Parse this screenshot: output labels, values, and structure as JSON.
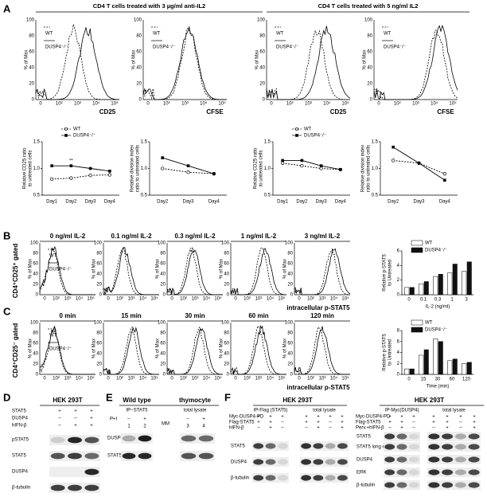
{
  "panel_labels": [
    "A",
    "B",
    "C",
    "D",
    "E",
    "F"
  ],
  "flow_axes": {
    "ylabel": "% of Max",
    "yticks": [
      0,
      20,
      40,
      60,
      80,
      100
    ],
    "xticks": [
      "0",
      "10²",
      "10³",
      "10⁴",
      "10⁵"
    ]
  },
  "panel_a": {
    "headers": [
      "CD4 T cells treated with 3 µg/ml anti-IL2",
      "CD4 T cells treated with 5 ng/ml IL2"
    ],
    "histogram_xlabels": [
      "CD25",
      "CFSE",
      "CD25",
      "CFSE"
    ],
    "legend": [
      "WT",
      "DUSP4⁻/⁻"
    ]
  },
  "panel_b": {
    "titles": [
      "0 ng/ml IL-2",
      "0.1 ng/ml IL-2",
      "0.3 ng/ml IL-2",
      "1 ng/ml IL-2",
      "3 ng/ml IL-2"
    ],
    "row_label": "CD4⁺CD25⁺ gated",
    "xlabel": "intracellular p-STAT5",
    "legend": [
      "WT",
      "DUSP4⁻/⁻"
    ]
  },
  "panel_c": {
    "titles": [
      "0 min",
      "15 min",
      "30 min",
      "60 min",
      "120 min"
    ],
    "row_label": "CD4⁺CD25⁻ gated",
    "xlabel": "intracellular p-STAT5",
    "legend": [
      "WT",
      "DUSP4⁻/⁻"
    ]
  },
  "panel_d": {
    "title": "HEK 293T",
    "conditions": [
      {
        "label": "STAT5",
        "signs": [
          "+",
          "+",
          "+"
        ]
      },
      {
        "label": "DUSP4",
        "signs": [
          "--",
          "--",
          "+"
        ]
      },
      {
        "label": "hIFN-β",
        "signs": [
          "--",
          "+",
          "+"
        ]
      }
    ],
    "blots": [
      "pSTAT5",
      "STAT5",
      "DUSP4",
      "β-tubulin"
    ]
  },
  "panel_e": {
    "headers": [
      "Wild type",
      "thymocyte"
    ],
    "groups": [
      "IP−STAT5",
      "total lysate"
    ],
    "marker": "MM",
    "condition": "P+I",
    "signs": [
      "--",
      "+",
      "--",
      "+"
    ],
    "lanes": [
      "1",
      "2",
      "3",
      "4"
    ],
    "blots": [
      "DUSP4",
      "STAT5"
    ]
  },
  "panel_f": [
    {
      "title": "HEK 293T",
      "groups": [
        "IP-Flag (STAT5)",
        "total lysate"
      ],
      "conditions": [
        {
          "label": "Myc-DUSP4-PD",
          "signs": [
            "+",
            "+",
            "+",
            "+",
            "+",
            "+",
            "+"
          ]
        },
        {
          "label": "Flag-STAT5",
          "signs": [
            "+",
            "+",
            "--",
            "+",
            "+",
            "--",
            "+"
          ]
        },
        {
          "label": "hIFN-β",
          "signs": [
            "--",
            "+",
            "--",
            "--",
            "+",
            "--",
            "+"
          ]
        }
      ],
      "blots": [
        "STAT5",
        "DUSP4",
        "β-tubulin"
      ]
    },
    {
      "title": "HEK 293T",
      "groups": [
        "IP-Myc(DUSP4)",
        "total lysate"
      ],
      "conditions": [
        {
          "label": "Myc-DUSP4-PD",
          "signs": [
            "+",
            "+",
            "+",
            "+",
            "+",
            "+",
            "+"
          ]
        },
        {
          "label": "Flag-STAT5",
          "signs": [
            "+",
            "+",
            "--",
            "+",
            "+",
            "--",
            "+"
          ]
        },
        {
          "label": "Perv.+hIFN-β",
          "signs": [
            "--",
            "+",
            "--",
            "--",
            "+",
            "--",
            "+"
          ]
        }
      ],
      "blots": [
        "STAT5",
        "STAT5 long expo.",
        "DUSP4",
        "ERK",
        "β-tubulin"
      ]
    }
  ],
  "chart_data": [
    {
      "type": "line",
      "ylabel": [
        "Relative CD25 ratio",
        "to untreated cells"
      ],
      "categories": [
        "Day1",
        "Day2",
        "Day3",
        "Day4"
      ],
      "ylim": [
        0.5,
        1.5
      ],
      "yticks": [
        0.5,
        {
          "value": 1,
          "label": "1.0"
        },
        1.5
      ],
      "legend": true,
      "annotation": "**",
      "series": [
        {
          "name": "WT",
          "color": "#000",
          "marker": "open",
          "dashed": true,
          "values": [
            0.8,
            0.82,
            0.87,
            0.88
          ]
        },
        {
          "name": "DUSP4⁻/⁻",
          "color": "#000",
          "marker": "filled",
          "dashed": false,
          "values": [
            1.05,
            1.05,
            1.0,
            0.95
          ]
        }
      ]
    },
    {
      "type": "line",
      "ylabel": [
        "Relative division index",
        "ratio to untreated cells"
      ],
      "categories": [
        "Day2",
        "Day3",
        "Day4"
      ],
      "ylim": [
        0.5,
        1.5
      ],
      "yticks": [
        0.5,
        {
          "value": 1,
          "label": "1.0"
        },
        1.5
      ],
      "legend": false,
      "series": [
        {
          "name": "WT",
          "color": "#000",
          "marker": "open",
          "dashed": true,
          "values": [
            1.0,
            0.93,
            0.9
          ]
        },
        {
          "name": "DUSP4⁻/⁻",
          "color": "#000",
          "marker": "filled",
          "dashed": false,
          "values": [
            1.2,
            1.05,
            0.9
          ]
        }
      ]
    },
    {
      "type": "line",
      "ylabel": [
        "Relative CD25 ratio",
        "to untreated cells"
      ],
      "categories": [
        "Day1",
        "Day2",
        "Day3",
        "Day4"
      ],
      "ylim": [
        0.5,
        1.5
      ],
      "yticks": [
        0.5,
        {
          "value": 1,
          "label": "1.0"
        },
        1.5
      ],
      "legend": true,
      "series": [
        {
          "name": "WT",
          "color": "#000",
          "marker": "open",
          "dashed": true,
          "values": [
            1.1,
            1.05,
            1.0,
            0.98
          ]
        },
        {
          "name": "DUSP4⁻/⁻",
          "color": "#000",
          "marker": "filled",
          "dashed": false,
          "values": [
            1.15,
            1.15,
            1.05,
            0.98
          ]
        }
      ]
    },
    {
      "type": "line",
      "ylabel": [
        "Relative division index",
        "ratio to untreated cells"
      ],
      "categories": [
        "Day2",
        "Day3",
        "Day4"
      ],
      "ylim": [
        0.5,
        1.5
      ],
      "yticks": [
        0.5,
        {
          "value": 1,
          "label": "1.0"
        },
        1.5
      ],
      "legend": false,
      "series": [
        {
          "name": "WT",
          "color": "#000",
          "marker": "open",
          "dashed": true,
          "values": [
            1.15,
            1.1,
            0.9
          ]
        },
        {
          "name": "DUSP4⁻/⁻",
          "color": "#000",
          "marker": "filled",
          "dashed": false,
          "values": [
            1.4,
            1.1,
            0.78
          ]
        }
      ]
    },
    {
      "type": "bar",
      "ylabel": [
        "Relative p-STAT5",
        "to Untreated"
      ],
      "xlabel": "IL-2 (ng/ml)",
      "categories": [
        "0",
        "0.1",
        "0.3",
        "1",
        "3"
      ],
      "ylim": [
        0,
        6
      ],
      "yticks": [
        0,
        2,
        4,
        6
      ],
      "legend": true,
      "series": [
        {
          "name": "WT",
          "color": "#ffffff",
          "values": [
            1,
            1.5,
            2.5,
            3,
            3.2
          ]
        },
        {
          "name": "DUSP4⁻/⁻",
          "color": "#111111",
          "values": [
            1,
            1.8,
            2.8,
            4.2,
            4.5
          ]
        }
      ]
    },
    {
      "type": "bar",
      "ylabel": [
        "Relative p-STAT5",
        "to Untreated"
      ],
      "xlabel": "Time (min)",
      "categories": [
        "0",
        "15",
        "30",
        "60",
        "120"
      ],
      "ylim": [
        0,
        8
      ],
      "yticks": [
        0,
        2,
        4,
        6,
        8
      ],
      "legend": true,
      "series": [
        {
          "name": "WT",
          "color": "#ffffff",
          "values": [
            1,
            3.5,
            6.5,
            2.5,
            2
          ]
        },
        {
          "name": "DUSP4⁻/⁻",
          "color": "#111111",
          "values": [
            1,
            4.5,
            6,
            2.8,
            2.2
          ]
        }
      ]
    }
  ]
}
